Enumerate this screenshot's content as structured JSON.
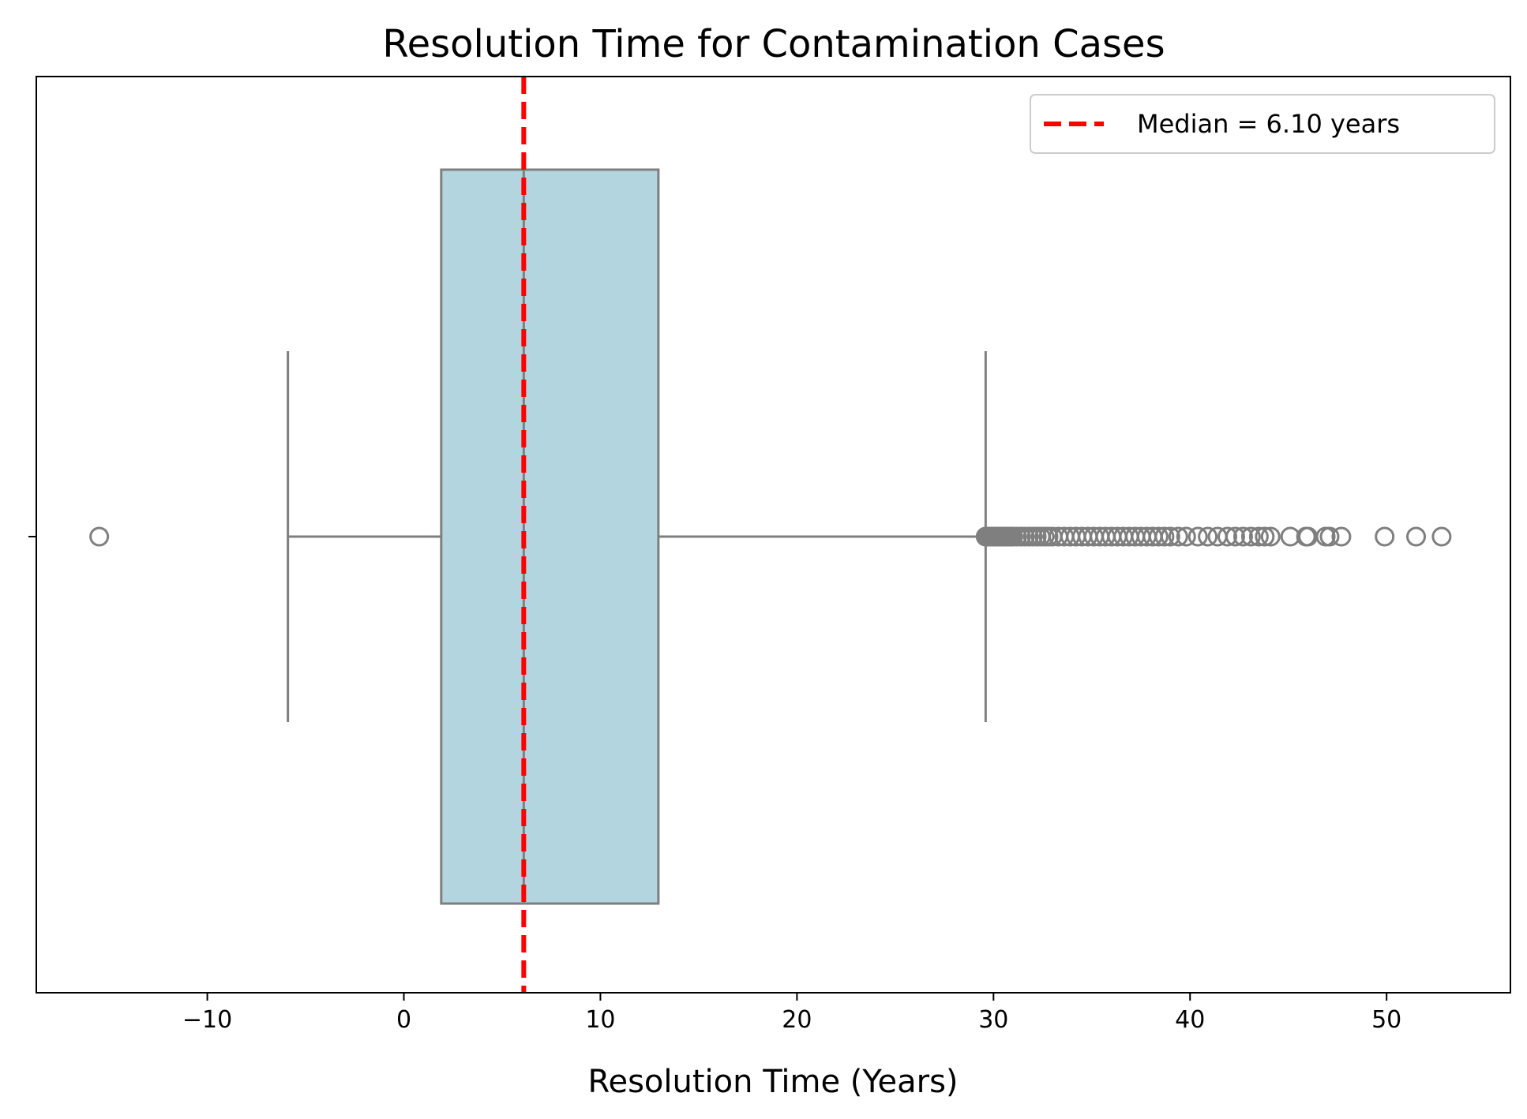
{
  "chart_data": {
    "type": "box",
    "title": "Resolution Time for Contamination Cases",
    "xlabel": "Resolution Time (Years)",
    "ylabel": "",
    "xlim": [
      -18.7,
      56.3
    ],
    "xticks": [
      -10,
      0,
      10,
      20,
      30,
      40,
      50
    ],
    "xtick_labels": [
      "−10",
      "0",
      "10",
      "20",
      "30",
      "40",
      "50"
    ],
    "box": {
      "whisker_low": -5.9,
      "q1": 1.9,
      "median": 6.1,
      "q3": 12.95,
      "whisker_high": 29.6
    },
    "outliers": [
      -15.5,
      29.6,
      29.7,
      29.8,
      29.9,
      30.0,
      30.1,
      30.2,
      30.3,
      30.4,
      30.5,
      30.6,
      30.7,
      30.8,
      30.9,
      31.0,
      31.2,
      31.4,
      31.6,
      31.8,
      32.0,
      32.2,
      32.4,
      32.6,
      32.8,
      33.0,
      33.3,
      33.6,
      33.9,
      34.2,
      34.5,
      34.8,
      35.1,
      35.4,
      35.7,
      36.0,
      36.3,
      36.6,
      36.9,
      37.2,
      37.5,
      37.8,
      38.1,
      38.4,
      38.7,
      39.0,
      39.4,
      39.8,
      40.4,
      40.9,
      41.4,
      41.9,
      42.3,
      42.7,
      43.1,
      43.5,
      43.8,
      44.1,
      45.1,
      45.9,
      46.0,
      46.9,
      47.1,
      47.7,
      49.9,
      51.5,
      52.8
    ],
    "median_line": {
      "value": 6.1,
      "label": "Median = 6.10 years",
      "color": "#ff0000",
      "style": "dashed"
    },
    "legend": {
      "position": "top-right",
      "entries": [
        "Median = 6.10 years"
      ]
    },
    "colors": {
      "box_fill": "#b3d5df",
      "box_edge": "#7f7f7f",
      "outlier_edge": "#7f7f7f"
    },
    "grid": false
  }
}
